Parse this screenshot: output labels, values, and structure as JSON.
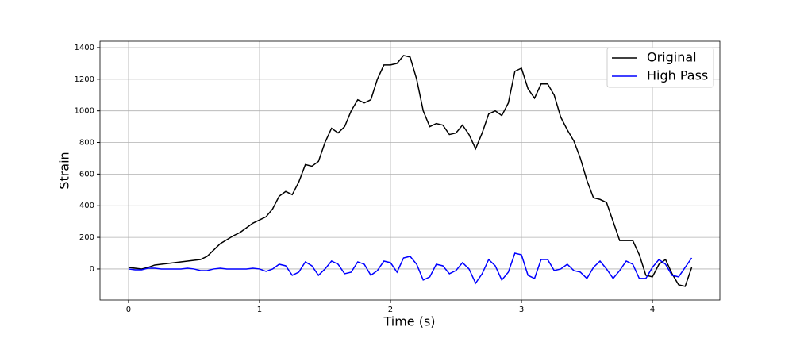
{
  "chart_data": {
    "type": "line",
    "xlabel": "Time (s)",
    "ylabel": "Strain",
    "x": [
      0,
      0.05,
      0.1,
      0.15,
      0.2,
      0.25,
      0.3,
      0.35,
      0.4,
      0.45,
      0.5,
      0.55,
      0.6,
      0.65,
      0.7,
      0.75,
      0.8,
      0.85,
      0.9,
      0.95,
      1.0,
      1.05,
      1.1,
      1.15,
      1.2,
      1.25,
      1.3,
      1.35,
      1.4,
      1.45,
      1.5,
      1.55,
      1.6,
      1.65,
      1.7,
      1.75,
      1.8,
      1.85,
      1.9,
      1.95,
      2.0,
      2.05,
      2.1,
      2.15,
      2.2,
      2.25,
      2.3,
      2.35,
      2.4,
      2.45,
      2.5,
      2.55,
      2.6,
      2.65,
      2.7,
      2.75,
      2.8,
      2.85,
      2.9,
      2.95,
      3.0,
      3.05,
      3.1,
      3.15,
      3.2,
      3.25,
      3.3,
      3.35,
      3.4,
      3.45,
      3.5,
      3.55,
      3.6,
      3.65,
      3.7,
      3.75,
      3.8,
      3.85,
      3.9,
      3.95,
      4.0,
      4.05,
      4.1,
      4.15,
      4.2,
      4.25,
      4.3
    ],
    "series": [
      {
        "name": "Original",
        "color": "#000000",
        "values": [
          10,
          5,
          0,
          10,
          25,
          30,
          35,
          40,
          45,
          50,
          55,
          60,
          80,
          120,
          160,
          185,
          210,
          230,
          260,
          290,
          310,
          330,
          380,
          460,
          490,
          470,
          550,
          660,
          650,
          680,
          800,
          890,
          860,
          900,
          1000,
          1070,
          1050,
          1070,
          1200,
          1290,
          1290,
          1300,
          1350,
          1340,
          1200,
          1000,
          900,
          920,
          910,
          850,
          860,
          910,
          850,
          760,
          860,
          980,
          1000,
          970,
          1050,
          1250,
          1270,
          1140,
          1080,
          1170,
          1170,
          1100,
          960,
          880,
          810,
          700,
          560,
          450,
          440,
          420,
          300,
          180,
          180,
          180,
          90,
          -40,
          -50,
          30,
          60,
          -30,
          -100,
          -110,
          10
        ]
      },
      {
        "name": "High Pass",
        "color": "#0000ff",
        "values": [
          0,
          -5,
          -5,
          5,
          5,
          0,
          0,
          0,
          0,
          5,
          0,
          -10,
          -10,
          0,
          5,
          0,
          0,
          0,
          0,
          5,
          0,
          -15,
          0,
          30,
          20,
          -40,
          -20,
          45,
          20,
          -40,
          0,
          50,
          30,
          -30,
          -20,
          45,
          30,
          -40,
          -10,
          50,
          40,
          -20,
          70,
          80,
          30,
          -70,
          -50,
          30,
          20,
          -30,
          -10,
          40,
          0,
          -90,
          -30,
          60,
          20,
          -70,
          -20,
          100,
          90,
          -40,
          -60,
          60,
          60,
          -10,
          0,
          30,
          -10,
          -20,
          -60,
          10,
          50,
          0,
          -60,
          -10,
          50,
          30,
          -60,
          -60,
          10,
          60,
          30,
          -40,
          -50,
          10,
          70
        ]
      }
    ],
    "xlim": [
      -0.218,
      4.515
    ],
    "ylim": [
      -196,
      1440
    ],
    "xticks": [
      0,
      1,
      2,
      3,
      4
    ],
    "yticks": [
      0,
      200,
      400,
      600,
      800,
      1000,
      1200,
      1400
    ],
    "grid": true,
    "legend": "upper right"
  }
}
